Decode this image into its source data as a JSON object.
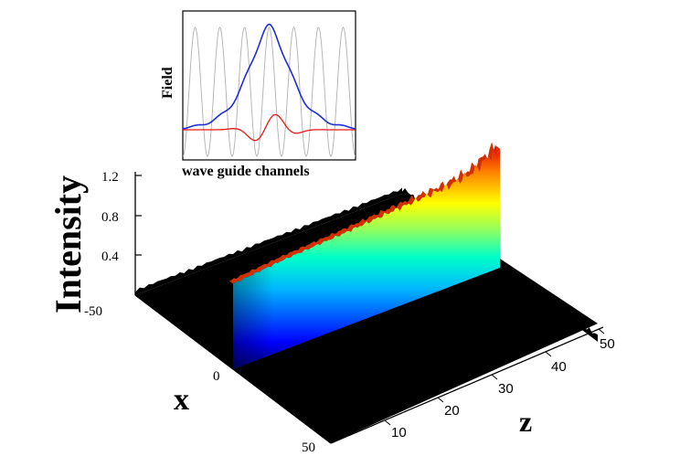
{
  "chart_data": [
    {
      "type": "surface",
      "title": "",
      "zlabel": "Intensity",
      "xlabel": "x",
      "ylabel": "z",
      "intensity_ticks": [
        "1.2",
        "0.8",
        "0.4"
      ],
      "x_ticks": [
        "-50",
        "0",
        "50"
      ],
      "z_ticks": [
        "10",
        "20",
        "30",
        "40",
        "50"
      ],
      "x_range": [
        -50,
        50
      ],
      "z_range": [
        0,
        50
      ],
      "intensity_range": [
        0,
        1.2
      ],
      "beam": {
        "x_center": 0,
        "intensity_at_z": [
          [
            0,
            0.85
          ],
          [
            10,
            0.9
          ],
          [
            20,
            0.93
          ],
          [
            30,
            0.97
          ],
          [
            40,
            1.0
          ],
          [
            45,
            1.05
          ],
          [
            50,
            1.2
          ]
        ]
      },
      "colormap": [
        "#00008f",
        "#0000ff",
        "#00ffff",
        "#ffff00",
        "#ff0000",
        "#800000"
      ],
      "background": "#000000"
    },
    {
      "type": "line",
      "title": "",
      "xlabel": "wave guide channels",
      "ylabel": "Field",
      "series": [
        {
          "color": "#1f2fd6",
          "description": "field amplitude, peaked at center"
        },
        {
          "color": "#e81818",
          "description": "small oscillation about zero"
        },
        {
          "color": "#b0b0b0",
          "description": "periodic waveguide potential, 7 peaks"
        }
      ]
    }
  ]
}
